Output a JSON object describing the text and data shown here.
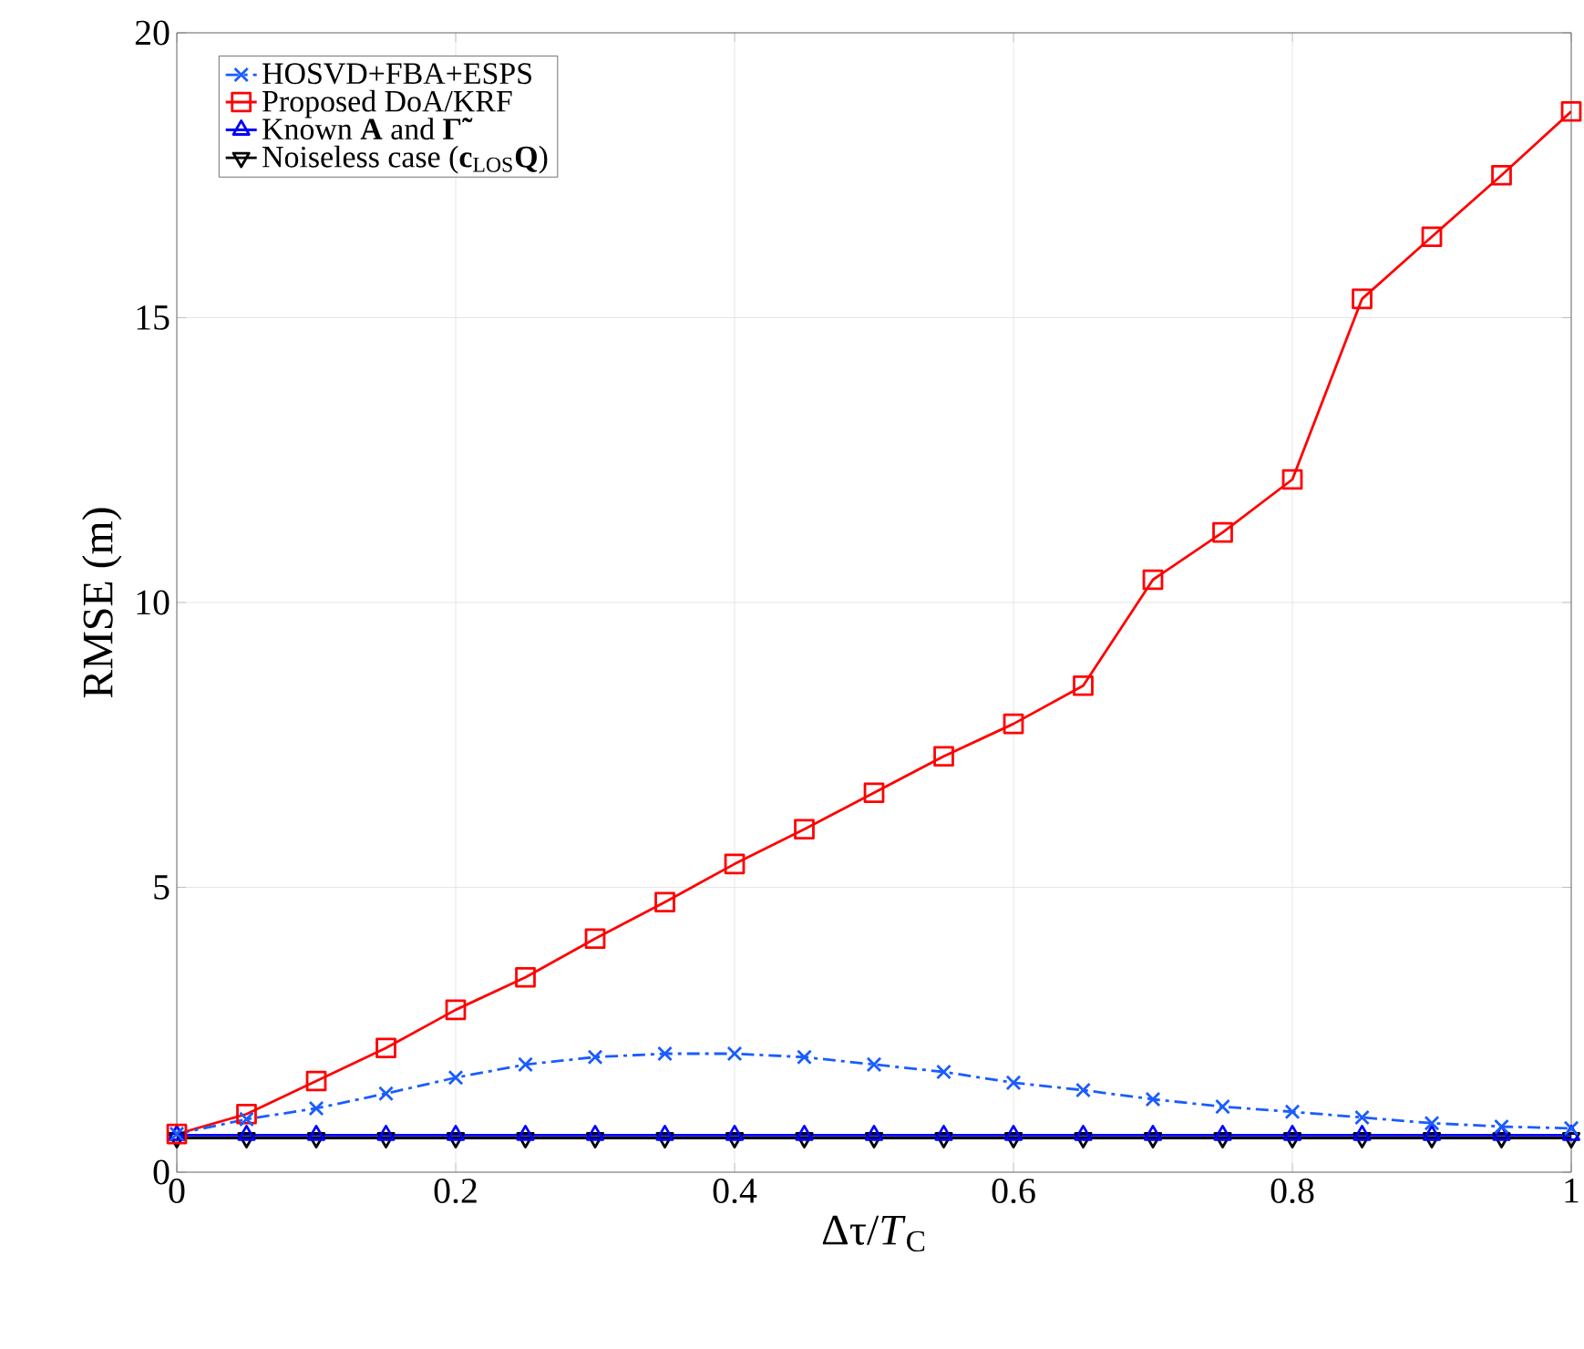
{
  "chart_data": {
    "type": "line",
    "xlabel": "Δτ/*T*$_{C}$",
    "ylabel": "RMSE (m)",
    "x": [
      0,
      0.05,
      0.1,
      0.15,
      0.2,
      0.25,
      0.3,
      0.35,
      0.4,
      0.45,
      0.5,
      0.55,
      0.6,
      0.65,
      0.7,
      0.75,
      0.8,
      0.85,
      0.9,
      0.95,
      1
    ],
    "xlim": [
      0,
      1
    ],
    "xticks": [
      0,
      0.2,
      0.4,
      0.6,
      0.8,
      1
    ],
    "ylim": [
      0,
      20
    ],
    "yticks": [
      0,
      5,
      10,
      15,
      20
    ],
    "grid": true,
    "legend": "top left",
    "series": [
      {
        "name": "HOSVD+FBA+ESPS",
        "color": "#1a5cff",
        "marker": "cross",
        "line_style": "dashdot",
        "values": [
          0.67,
          0.93,
          1.12,
          1.38,
          1.66,
          1.89,
          2.02,
          2.08,
          2.08,
          2.02,
          1.89,
          1.76,
          1.57,
          1.44,
          1.28,
          1.15,
          1.06,
          0.96,
          0.86,
          0.8,
          0.77
        ]
      },
      {
        "name": "Proposed DoA/KRF",
        "color": "#ff0000",
        "marker": "square",
        "line_style": "solid",
        "values": [
          0.67,
          1.02,
          1.6,
          2.18,
          2.85,
          3.42,
          4.1,
          4.74,
          5.41,
          6.02,
          6.66,
          7.3,
          7.87,
          8.54,
          10.4,
          11.23,
          12.16,
          15.33,
          16.42,
          17.5,
          18.62
        ]
      },
      {
        "name": "Known **A** and **Γ̃**",
        "color": "#0000ff",
        "marker": "triangle",
        "line_style": "solid",
        "values": [
          0.65,
          0.65,
          0.65,
          0.65,
          0.65,
          0.65,
          0.65,
          0.65,
          0.65,
          0.65,
          0.65,
          0.65,
          0.65,
          0.65,
          0.65,
          0.65,
          0.65,
          0.65,
          0.65,
          0.65,
          0.65
        ]
      },
      {
        "name": "Noiseless case (**c**$_{LOS}$**Q**)",
        "color": "#000000",
        "marker": "triangle-down",
        "line_style": "solid",
        "values": [
          0.6,
          0.6,
          0.6,
          0.6,
          0.6,
          0.6,
          0.6,
          0.6,
          0.6,
          0.6,
          0.6,
          0.6,
          0.6,
          0.6,
          0.6,
          0.6,
          0.6,
          0.6,
          0.6,
          0.6,
          0.6
        ]
      }
    ]
  }
}
